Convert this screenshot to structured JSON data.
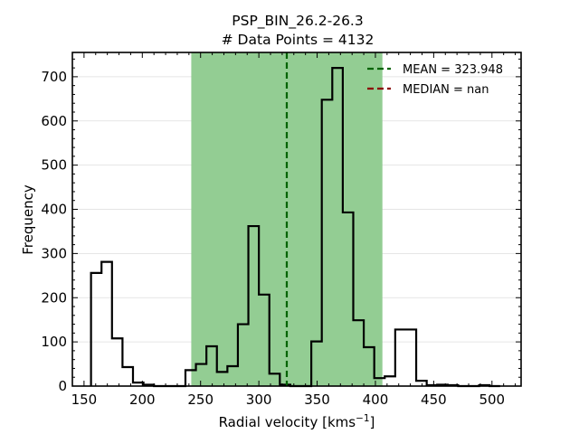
{
  "chart_data": {
    "type": "histogram",
    "title_lines": [
      "PSP_BIN_26.2-26.3",
      "# Data Points = 4132"
    ],
    "xlabel": "Radial velocity [kms",
    "xlabel_sup": "−1",
    "xlabel_close": "]",
    "ylabel": "Frequency",
    "xlim": [
      140,
      525
    ],
    "ylim": [
      0,
      755
    ],
    "xticks": [
      150,
      200,
      250,
      300,
      350,
      400,
      450,
      500
    ],
    "yticks": [
      0,
      100,
      200,
      300,
      400,
      500,
      600,
      700
    ],
    "grid": "y",
    "bin_width": 9,
    "bins": [
      {
        "x0": 156,
        "count": 256
      },
      {
        "x0": 165,
        "count": 281
      },
      {
        "x0": 174,
        "count": 108
      },
      {
        "x0": 183,
        "count": 43
      },
      {
        "x0": 192,
        "count": 8
      },
      {
        "x0": 201,
        "count": 3
      },
      {
        "x0": 210,
        "count": 0
      },
      {
        "x0": 219,
        "count": 0
      },
      {
        "x0": 228,
        "count": 0
      },
      {
        "x0": 237,
        "count": 36
      },
      {
        "x0": 246,
        "count": 50
      },
      {
        "x0": 255,
        "count": 90
      },
      {
        "x0": 264,
        "count": 32
      },
      {
        "x0": 273,
        "count": 45
      },
      {
        "x0": 282,
        "count": 140
      },
      {
        "x0": 291,
        "count": 362
      },
      {
        "x0": 300,
        "count": 207
      },
      {
        "x0": 309,
        "count": 28
      },
      {
        "x0": 318,
        "count": 3
      },
      {
        "x0": 327,
        "count": 0
      },
      {
        "x0": 336,
        "count": 0
      },
      {
        "x0": 345,
        "count": 101
      },
      {
        "x0": 354,
        "count": 648
      },
      {
        "x0": 363,
        "count": 720
      },
      {
        "x0": 372,
        "count": 393
      },
      {
        "x0": 381,
        "count": 149
      },
      {
        "x0": 390,
        "count": 88
      },
      {
        "x0": 399,
        "count": 18
      },
      {
        "x0": 408,
        "count": 22
      },
      {
        "x0": 417,
        "count": 128
      },
      {
        "x0": 426,
        "count": 128
      },
      {
        "x0": 435,
        "count": 12
      },
      {
        "x0": 444,
        "count": 2
      },
      {
        "x0": 453,
        "count": 3
      },
      {
        "x0": 462,
        "count": 2
      },
      {
        "x0": 471,
        "count": 0
      },
      {
        "x0": 480,
        "count": 0
      },
      {
        "x0": 489,
        "count": 2
      },
      {
        "x0": 498,
        "count": 0
      }
    ],
    "shaded_range": [
      242,
      406
    ],
    "shade_color": "#93cd93",
    "mean_value": 323.948,
    "mean_color": "#006400",
    "median_color": "#8b0000",
    "legend": [
      {
        "label": "MEAN = 323.948",
        "color": "#006400"
      },
      {
        "label": "MEDIAN = nan",
        "color": "#8b0000"
      }
    ],
    "legend_position": "top-right"
  }
}
